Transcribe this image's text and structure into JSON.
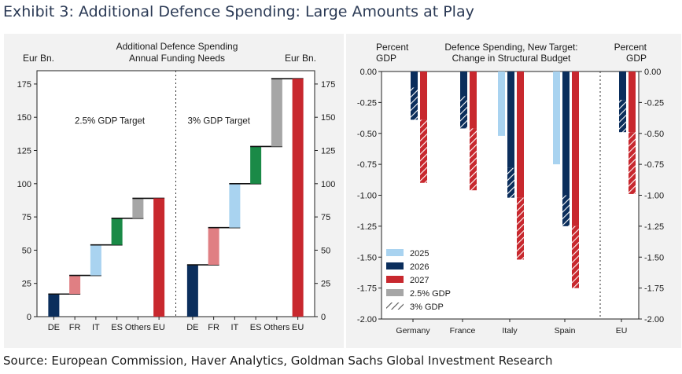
{
  "exhibit": {
    "title": "Exhibit 3: Additional Defence Spending: Large Amounts at Play",
    "source": "Source: European Commission, Haver Analytics, Goldman Sachs Global Investment Research"
  },
  "colors": {
    "DE": "#0b2e5c",
    "FR": "#e07f83",
    "IT": "#a9d3f0",
    "ES": "#1a8a47",
    "Others": "#a6a6a6",
    "EU": "#c8282e",
    "y2025": "#a9d3f0",
    "y2026": "#0b2e5c",
    "y2027": "#c8282e",
    "gdp25": "#a6a6a6"
  },
  "chart_data": [
    {
      "type": "bar",
      "subtype": "waterfall",
      "title": "Additional Defence Spending\nAnnual Funding Needs",
      "title_lines": [
        "Additional Defence Spending",
        "Annual Funding Needs"
      ],
      "ylabel_left": "Eur Bn.",
      "ylabel_right": "Eur Bn.",
      "ylim": [
        0,
        185
      ],
      "yticks": [
        0,
        25,
        50,
        75,
        100,
        125,
        150,
        175
      ],
      "grid": false,
      "groups": [
        {
          "label": "2.5% GDP Target",
          "categories": [
            "DE",
            "FR",
            "IT",
            "ES",
            "Others",
            "EU"
          ],
          "values": [
            17,
            14,
            23,
            20,
            15,
            89
          ],
          "cumulative_total": 89
        },
        {
          "label": "3% GDP Target",
          "categories": [
            "DE",
            "FR",
            "IT",
            "ES",
            "Others",
            "EU"
          ],
          "values": [
            39,
            28,
            33,
            28,
            51,
            179
          ],
          "cumulative_total": 179
        }
      ]
    },
    {
      "type": "bar",
      "title": "Defence Spending, New Target:\nChange in Structural Budget",
      "title_lines": [
        "Defence Spending, New Target:",
        "Change in Structural Budget"
      ],
      "ylabel_left_lines": [
        "Percent",
        "GDP"
      ],
      "ylabel_right_lines": [
        "Percent",
        "GDP"
      ],
      "ylim": [
        -2.0,
        0.0
      ],
      "yticks": [
        0.0,
        -0.25,
        -0.5,
        -0.75,
        -1.0,
        -1.25,
        -1.5,
        -1.75,
        -2.0
      ],
      "ytick_labels": [
        "0.00",
        "-0.25",
        "-0.50",
        "-0.75",
        "-1.00",
        "-1.25",
        "-1.50",
        "-1.75",
        "-2.00"
      ],
      "grid": false,
      "categories": [
        "Germany",
        "France",
        "Italy",
        "Spain",
        "EU"
      ],
      "series": [
        {
          "name": "2025",
          "values_2_5_gdp": [
            null,
            null,
            -0.52,
            -0.75,
            null
          ],
          "values_3_gdp": [
            null,
            null,
            null,
            null,
            null
          ]
        },
        {
          "name": "2026",
          "values_2_5_gdp": [
            -0.13,
            -0.2,
            -0.78,
            -1.0,
            -0.23
          ],
          "values_3_gdp": [
            -0.39,
            -0.46,
            -1.02,
            -1.25,
            -0.49
          ]
        },
        {
          "name": "2027",
          "values_2_5_gdp": [
            -0.39,
            -0.46,
            -1.02,
            -1.25,
            -0.49
          ],
          "values_3_gdp": [
            -0.9,
            -0.96,
            -1.52,
            -1.75,
            -0.99
          ]
        }
      ],
      "legend": {
        "placement": "bottom-left",
        "entries": [
          "2025",
          "2026",
          "2027",
          "2.5% GDP",
          "3% GDP"
        ]
      }
    }
  ]
}
